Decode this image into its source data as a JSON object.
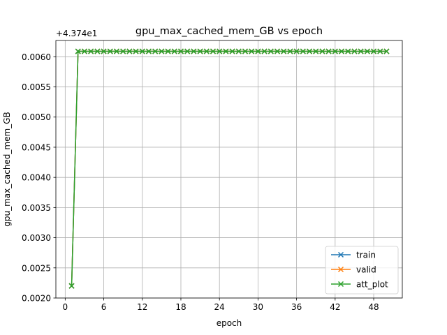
{
  "chart_data": {
    "type": "line",
    "title": "gpu_max_cached_mem_GB vs epoch",
    "xlabel": "epoch",
    "ylabel": "gpu_max_cached_mem_GB",
    "offset_label": "+4.374e1",
    "xlim": [
      -1.45,
      52.45
    ],
    "ylim": [
      0.002,
      0.00627
    ],
    "xticks": [
      0,
      6,
      12,
      18,
      24,
      30,
      36,
      42,
      48
    ],
    "yticks": [
      0.002,
      0.0025,
      0.003,
      0.0035,
      0.004,
      0.0045,
      0.005,
      0.0055,
      0.006
    ],
    "ytick_labels": [
      "0.0020",
      "0.0025",
      "0.0030",
      "0.0035",
      "0.0040",
      "0.0045",
      "0.0050",
      "0.0055",
      "0.0060"
    ],
    "grid": true,
    "legend_position": "lower-right",
    "x": [
      1,
      2,
      3,
      4,
      5,
      6,
      7,
      8,
      9,
      10,
      11,
      12,
      13,
      14,
      15,
      16,
      17,
      18,
      19,
      20,
      21,
      22,
      23,
      24,
      25,
      26,
      27,
      28,
      29,
      30,
      31,
      32,
      33,
      34,
      35,
      36,
      37,
      38,
      39,
      40,
      41,
      42,
      43,
      44,
      45,
      46,
      47,
      48,
      49,
      50
    ],
    "series": [
      {
        "name": "train",
        "color": "#1f77b4",
        "values": [
          0.0022,
          0.00609,
          0.00609,
          0.00609,
          0.00609,
          0.00609,
          0.00609,
          0.00609,
          0.00609,
          0.00609,
          0.00609,
          0.00609,
          0.00609,
          0.00609,
          0.00609,
          0.00609,
          0.00609,
          0.00609,
          0.00609,
          0.00609,
          0.00609,
          0.00609,
          0.00609,
          0.00609,
          0.00609,
          0.00609,
          0.00609,
          0.00609,
          0.00609,
          0.00609,
          0.00609,
          0.00609,
          0.00609,
          0.00609,
          0.00609,
          0.00609,
          0.00609,
          0.00609,
          0.00609,
          0.00609,
          0.00609,
          0.00609,
          0.00609,
          0.00609,
          0.00609,
          0.00609,
          0.00609,
          0.00609,
          0.00609,
          0.00609
        ]
      },
      {
        "name": "valid",
        "color": "#ff7f0e",
        "values": [
          0.0022,
          0.00609,
          0.00609,
          0.00609,
          0.00609,
          0.00609,
          0.00609,
          0.00609,
          0.00609,
          0.00609,
          0.00609,
          0.00609,
          0.00609,
          0.00609,
          0.00609,
          0.00609,
          0.00609,
          0.00609,
          0.00609,
          0.00609,
          0.00609,
          0.00609,
          0.00609,
          0.00609,
          0.00609,
          0.00609,
          0.00609,
          0.00609,
          0.00609,
          0.00609,
          0.00609,
          0.00609,
          0.00609,
          0.00609,
          0.00609,
          0.00609,
          0.00609,
          0.00609,
          0.00609,
          0.00609,
          0.00609,
          0.00609,
          0.00609,
          0.00609,
          0.00609,
          0.00609,
          0.00609,
          0.00609,
          0.00609,
          0.00609
        ]
      },
      {
        "name": "att_plot",
        "color": "#2ca02c",
        "values": [
          0.0022,
          0.00609,
          0.00609,
          0.00609,
          0.00609,
          0.00609,
          0.00609,
          0.00609,
          0.00609,
          0.00609,
          0.00609,
          0.00609,
          0.00609,
          0.00609,
          0.00609,
          0.00609,
          0.00609,
          0.00609,
          0.00609,
          0.00609,
          0.00609,
          0.00609,
          0.00609,
          0.00609,
          0.00609,
          0.00609,
          0.00609,
          0.00609,
          0.00609,
          0.00609,
          0.00609,
          0.00609,
          0.00609,
          0.00609,
          0.00609,
          0.00609,
          0.00609,
          0.00609,
          0.00609,
          0.00609,
          0.00609,
          0.00609,
          0.00609,
          0.00609,
          0.00609,
          0.00609,
          0.00609,
          0.00609,
          0.00609,
          0.00609
        ]
      }
    ]
  }
}
